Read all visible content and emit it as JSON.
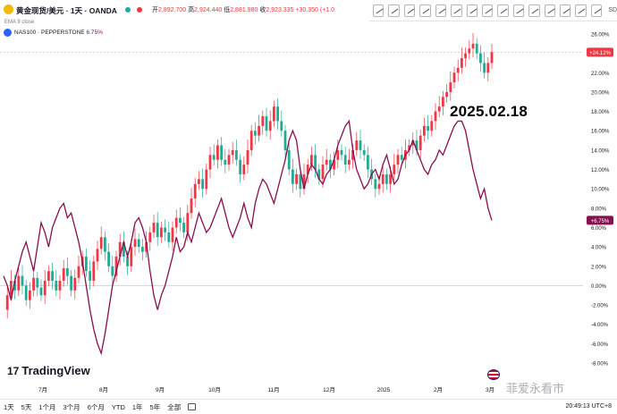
{
  "header": {
    "symbol_title": "黄金现货/美元 · 1天 · OANDA",
    "open_label": "开",
    "open": "2,892.700",
    "high_label": "高",
    "high": "2,924.440",
    "low_label": "低",
    "low": "2,881.980",
    "close_label": "收",
    "close": "2,923.335",
    "change": "+30.350 (+1.0",
    "ema_label": "EMA 9 close",
    "compare_symbol": "NAS100 · PEPPERSTONE",
    "compare_pct": "6.75%"
  },
  "toolbar": {
    "sd_label": "SD",
    "tool_count": 15
  },
  "annotation": "2025.02.18",
  "brand": {
    "logo": "17",
    "name": "TradingView"
  },
  "watermark": "菲爱永看市",
  "bottom": {
    "ranges": [
      "1天",
      "5天",
      "1个月",
      "3个月",
      "6个月",
      "YTD",
      "1年",
      "5年",
      "全部"
    ],
    "clock": "20:49:13 UTC+8"
  },
  "colors": {
    "up": "#22ab94",
    "down": "#f23645",
    "compare_line": "#880e4f",
    "price_tag": "#f23645"
  },
  "chart_data": {
    "type": "line",
    "x_ticks": [
      "7月",
      "8月",
      "9月",
      "10月",
      "11月",
      "12月",
      "2025",
      "2月",
      "3月"
    ],
    "y_ticks": [
      "26.00%",
      "24.00%",
      "22.00%",
      "20.00%",
      "18.00%",
      "16.00%",
      "14.00%",
      "12.00%",
      "10.00%",
      "8.00%",
      "6.00%",
      "4.00%",
      "2.00%",
      "0.00%",
      "-2.00%",
      "-4.00%",
      "-6.00%",
      "-8.00%"
    ],
    "ylim": [
      -8,
      26
    ],
    "last_gold_tag": "+24.12%",
    "last_nas_tag": "+6.75%",
    "gold_series": [
      -2.5,
      -1.0,
      0.5,
      -0.5,
      1.0,
      0.0,
      -1.5,
      -0.5,
      0.8,
      -0.2,
      -1.0,
      0.5,
      1.5,
      0.5,
      -0.5,
      0.5,
      1.8,
      1.0,
      -0.5,
      0.8,
      2.0,
      3.0,
      1.5,
      0.5,
      2.5,
      3.8,
      5.0,
      3.5,
      2.0,
      1.0,
      3.0,
      4.5,
      3.0,
      2.0,
      4.0,
      4.8,
      4.0,
      3.5,
      4.5,
      5.5,
      6.5,
      5.0,
      6.0,
      5.5,
      4.5,
      6.0,
      7.0,
      6.5,
      5.5,
      7.5,
      9.0,
      10.5,
      11.0,
      10.0,
      12.0,
      13.5,
      13.0,
      14.5,
      13.0,
      12.5,
      13.5,
      14.0,
      13.0,
      11.5,
      12.5,
      14.0,
      16.0,
      15.5,
      16.5,
      17.5,
      16.0,
      17.0,
      18.5,
      17.0,
      16.0,
      14.0,
      12.0,
      10.5,
      11.5,
      10.0,
      11.5,
      12.5,
      13.5,
      12.0,
      11.0,
      12.5,
      13.0,
      12.0,
      13.0,
      14.0,
      13.5,
      12.5,
      13.0,
      14.0,
      15.0,
      14.0,
      13.5,
      12.0,
      11.0,
      10.0,
      10.5,
      11.5,
      10.5,
      11.5,
      12.5,
      13.5,
      13.0,
      14.0,
      14.5,
      15.0,
      14.0,
      15.5,
      16.5,
      16.0,
      17.0,
      18.0,
      18.5,
      19.5,
      20.0,
      21.0,
      22.0,
      22.5,
      23.5,
      24.0,
      24.5,
      25.0,
      24.0,
      23.0,
      22.0,
      23.0,
      24.12
    ],
    "nas_series": [
      1.0,
      0.0,
      -1.5,
      0.5,
      2.0,
      3.5,
      4.5,
      3.0,
      1.5,
      4.0,
      6.5,
      5.5,
      4.0,
      6.0,
      7.0,
      8.0,
      8.5,
      7.0,
      7.5,
      6.0,
      4.5,
      2.5,
      0.0,
      -2.5,
      -4.5,
      -6.0,
      -7.0,
      -5.0,
      -2.5,
      0.0,
      1.5,
      3.0,
      4.5,
      3.0,
      4.5,
      6.5,
      7.0,
      6.0,
      4.5,
      1.5,
      -1.0,
      -2.5,
      -1.0,
      0.0,
      1.5,
      3.0,
      5.0,
      3.5,
      4.0,
      5.5,
      4.5,
      6.0,
      7.5,
      6.5,
      5.5,
      6.0,
      7.0,
      8.0,
      9.0,
      7.5,
      6.0,
      5.0,
      6.0,
      7.0,
      8.5,
      7.0,
      6.0,
      8.5,
      10.0,
      11.0,
      10.5,
      9.5,
      8.5,
      10.0,
      11.5,
      13.0,
      15.0,
      16.0,
      15.0,
      12.0,
      10.0,
      11.5,
      12.5,
      12.0,
      11.0,
      10.5,
      11.5,
      12.0,
      13.0,
      14.5,
      15.5,
      16.5,
      17.0,
      14.0,
      12.0,
      11.0,
      10.0,
      10.5,
      11.5,
      12.0,
      11.0,
      12.5,
      13.5,
      12.0,
      10.5,
      11.0,
      12.5,
      13.5,
      14.0,
      15.0,
      14.0,
      13.0,
      12.0,
      11.5,
      12.5,
      13.0,
      14.0,
      13.5,
      14.5,
      15.5,
      16.5,
      17.0,
      17.0,
      16.0,
      14.0,
      12.0,
      10.5,
      9.0,
      10.0,
      8.0,
      6.75
    ]
  }
}
